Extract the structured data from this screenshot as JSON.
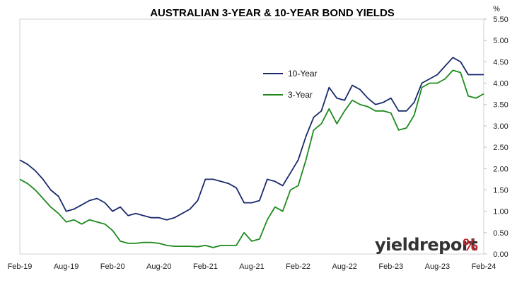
{
  "chart_data": {
    "type": "line",
    "title": "AUSTRALIAN 3-YEAR & 10-YEAR BOND YIELDS",
    "ylabel": "%",
    "xlabel": "",
    "ylim": [
      0,
      5.5
    ],
    "y_ticks": [
      "0.00",
      "0.50",
      "1.00",
      "1.50",
      "2.00",
      "2.50",
      "3.00",
      "3.50",
      "4.00",
      "4.50",
      "5.00",
      "5.50"
    ],
    "x_ticks": [
      "Feb-19",
      "Aug-19",
      "Feb-20",
      "Aug-20",
      "Feb-21",
      "Aug-21",
      "Feb-22",
      "Aug-22",
      "Feb-23",
      "Aug-23",
      "Feb-24"
    ],
    "grid": false,
    "legend_position": "center-right",
    "x": [
      "Feb-19",
      "Mar-19",
      "Apr-19",
      "May-19",
      "Jun-19",
      "Jul-19",
      "Aug-19",
      "Sep-19",
      "Oct-19",
      "Nov-19",
      "Dec-19",
      "Jan-20",
      "Feb-20",
      "Mar-20",
      "Apr-20",
      "May-20",
      "Jun-20",
      "Jul-20",
      "Aug-20",
      "Sep-20",
      "Oct-20",
      "Nov-20",
      "Dec-20",
      "Jan-21",
      "Feb-21",
      "Mar-21",
      "Apr-21",
      "May-21",
      "Jun-21",
      "Jul-21",
      "Aug-21",
      "Sep-21",
      "Oct-21",
      "Nov-21",
      "Dec-21",
      "Jan-22",
      "Feb-22",
      "Mar-22",
      "Apr-22",
      "May-22",
      "Jun-22",
      "Jul-22",
      "Aug-22",
      "Sep-22",
      "Oct-22",
      "Nov-22",
      "Dec-22",
      "Jan-23",
      "Feb-23",
      "Mar-23",
      "Apr-23",
      "May-23",
      "Jun-23",
      "Jul-23",
      "Aug-23",
      "Sep-23",
      "Oct-23",
      "Nov-23",
      "Dec-23",
      "Jan-24",
      "Feb-24"
    ],
    "series": [
      {
        "name": "10-Year",
        "color": "#1a2a6c",
        "values": [
          2.2,
          2.1,
          1.95,
          1.75,
          1.5,
          1.35,
          1.0,
          1.05,
          1.15,
          1.25,
          1.3,
          1.2,
          1.0,
          1.1,
          0.9,
          0.95,
          0.9,
          0.85,
          0.85,
          0.8,
          0.85,
          0.95,
          1.05,
          1.25,
          1.75,
          1.75,
          1.7,
          1.65,
          1.55,
          1.2,
          1.2,
          1.25,
          1.75,
          1.7,
          1.6,
          1.9,
          2.2,
          2.75,
          3.2,
          3.35,
          3.9,
          3.65,
          3.6,
          3.95,
          3.85,
          3.65,
          3.5,
          3.55,
          3.65,
          3.35,
          3.35,
          3.55,
          4.0,
          4.1,
          4.2,
          4.4,
          4.6,
          4.5,
          4.2,
          4.2,
          4.2
        ]
      },
      {
        "name": "3-Year",
        "color": "#1e8a1e",
        "values": [
          1.75,
          1.65,
          1.5,
          1.3,
          1.1,
          0.95,
          0.75,
          0.8,
          0.7,
          0.8,
          0.75,
          0.7,
          0.55,
          0.3,
          0.25,
          0.25,
          0.27,
          0.27,
          0.25,
          0.2,
          0.18,
          0.18,
          0.18,
          0.17,
          0.2,
          0.15,
          0.2,
          0.2,
          0.2,
          0.5,
          0.3,
          0.35,
          0.8,
          1.1,
          1.0,
          1.5,
          1.6,
          2.2,
          2.9,
          3.05,
          3.4,
          3.05,
          3.35,
          3.6,
          3.5,
          3.45,
          3.35,
          3.35,
          3.3,
          2.9,
          2.95,
          3.25,
          3.9,
          4.0,
          4.0,
          4.1,
          4.3,
          4.25,
          3.7,
          3.65,
          3.75
        ]
      }
    ],
    "watermark": "yieldreport %"
  }
}
